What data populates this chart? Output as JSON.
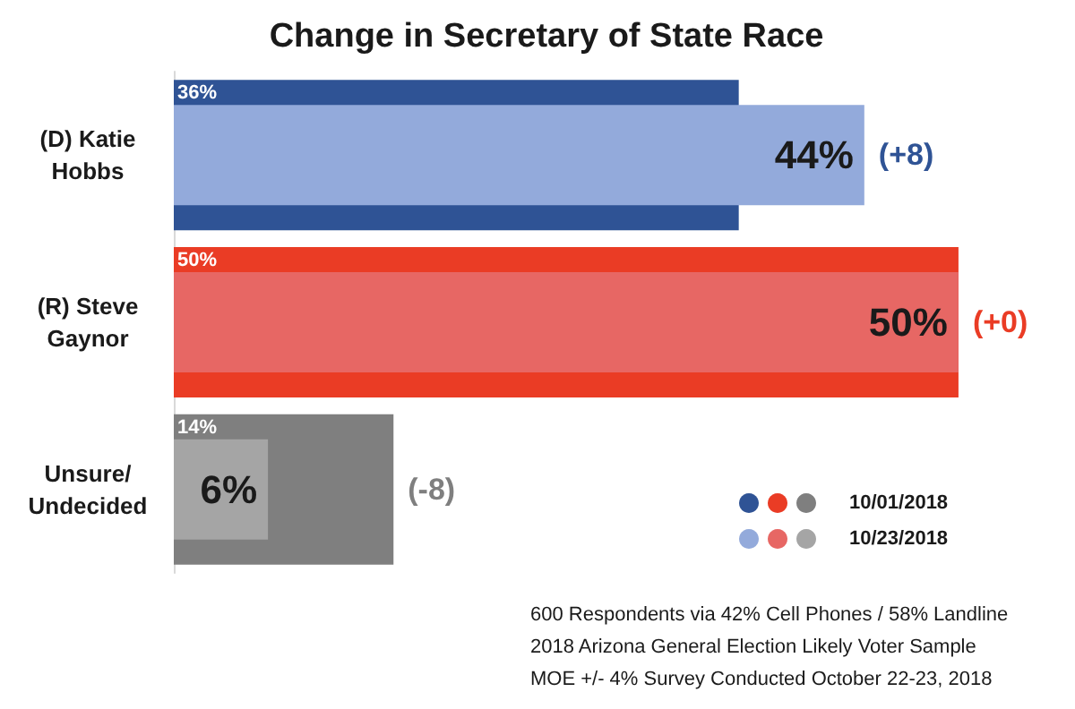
{
  "chart_data": {
    "type": "bar",
    "orientation": "horizontal",
    "title": "Change in Secretary of State Race",
    "categories": [
      "(D) Katie\nHobbs",
      "(R) Steve\nGaynor",
      "Unsure/\nUndecided"
    ],
    "series": [
      {
        "name": "10/01/2018",
        "colors": [
          "#2f5395",
          "#ea3c25",
          "#7f7f7f"
        ],
        "values": [
          36,
          50,
          14
        ],
        "value_labels": [
          "36%",
          "50%",
          "14%"
        ]
      },
      {
        "name": "10/23/2018",
        "colors": [
          "#93aadb",
          "#e76764",
          "#a5a5a5"
        ],
        "values": [
          44,
          50,
          6
        ],
        "value_labels": [
          "44%",
          "50%",
          "6%"
        ]
      }
    ],
    "legend": "bottom right",
    "annotations": [
      {
        "text": "(+8)",
        "x": 44,
        "y": "(D) Katie\nHobbs"
      },
      {
        "text": "(+0)",
        "x": 50,
        "y": "(R) Steve\nGaynor"
      },
      {
        "text": "(-8)",
        "x": 14,
        "y": "Unsure/\nUndecided"
      },
      "600 Respondents via 42% Cell Phones / 58% Landline",
      "2018 Arizona General Election Likely Voter Sample",
      "MOE +/- 4% Survey Conducted October 22-23, 2018"
    ]
  }
}
